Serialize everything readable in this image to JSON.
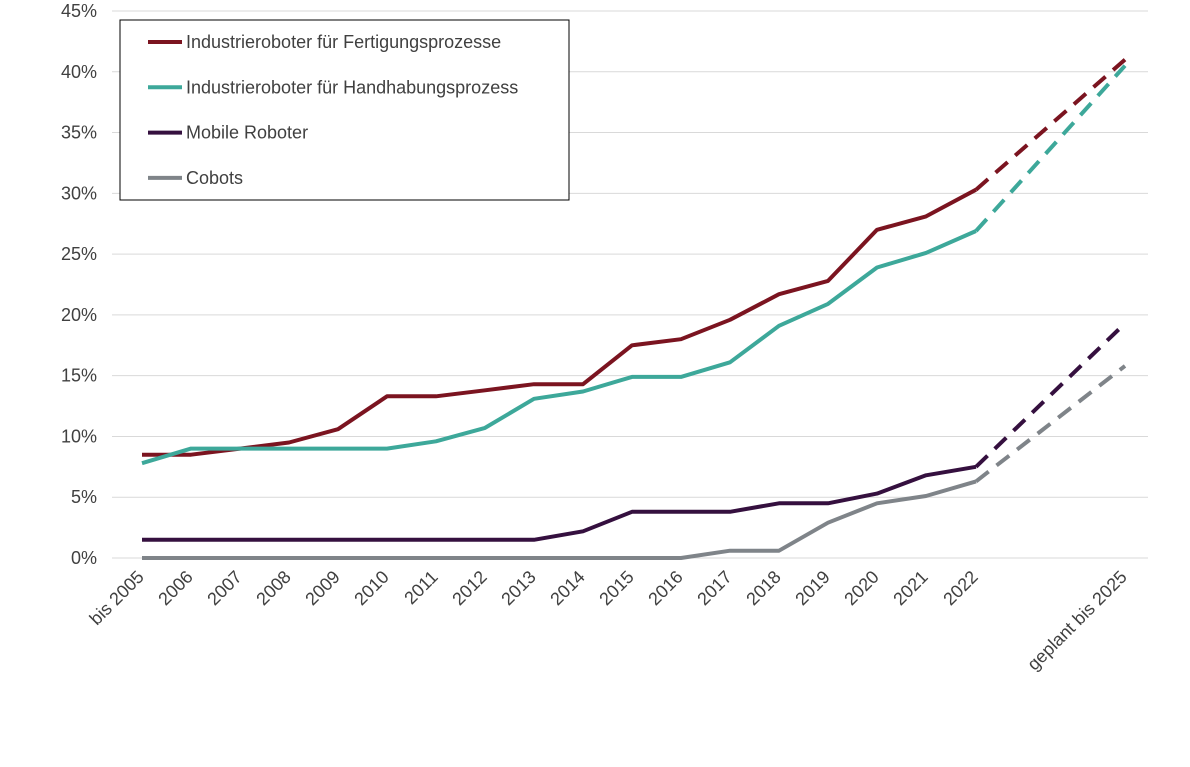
{
  "chart_data": {
    "type": "line",
    "title": "",
    "xlabel": "",
    "ylabel": "",
    "categories": [
      "bis 2005",
      "2006",
      "2007",
      "2008",
      "2009",
      "2010",
      "2011",
      "2012",
      "2013",
      "2014",
      "2015",
      "2016",
      "2017",
      "2018",
      "2019",
      "2020",
      "2021",
      "2022",
      "geplant bis 2025"
    ],
    "ylim": [
      0,
      45
    ],
    "yticks": [
      0,
      5,
      10,
      15,
      20,
      25,
      30,
      35,
      40,
      45
    ],
    "ytick_labels": [
      "0%",
      "5%",
      "10%",
      "15%",
      "20%",
      "25%",
      "30%",
      "35%",
      "40%",
      "45%"
    ],
    "grid": true,
    "legend_position": "top-left",
    "projection_note": "dashed segment from 2022 to geplant bis 2025",
    "series": [
      {
        "name": "Industrieroboter für Fertigungsprozesse",
        "color": "#7B1420",
        "values": [
          8.5,
          8.5,
          9.0,
          9.5,
          10.6,
          13.3,
          13.3,
          13.8,
          14.3,
          14.3,
          17.5,
          18.0,
          19.6,
          21.7,
          22.8,
          27.0,
          28.1,
          30.3,
          41.0
        ]
      },
      {
        "name": "Industrieroboter für Handhabungsprozess",
        "color": "#3DA89A",
        "values": [
          7.8,
          9.0,
          9.0,
          9.0,
          9.0,
          9.0,
          9.6,
          10.7,
          13.1,
          13.7,
          14.9,
          14.9,
          16.1,
          19.1,
          20.9,
          23.9,
          25.1,
          26.9,
          40.5
        ]
      },
      {
        "name": "Mobile Roboter",
        "color": "#35103F",
        "values": [
          1.5,
          1.5,
          1.5,
          1.5,
          1.5,
          1.5,
          1.5,
          1.5,
          1.5,
          2.2,
          3.8,
          3.8,
          3.8,
          4.5,
          4.5,
          5.3,
          6.8,
          7.5,
          19.3
        ]
      },
      {
        "name": "Cobots",
        "color": "#7F8489",
        "values": [
          0,
          0,
          0,
          0,
          0,
          0,
          0,
          0,
          0,
          0,
          0,
          0,
          0.6,
          0.6,
          2.9,
          4.5,
          5.1,
          6.3,
          15.8
        ]
      }
    ]
  }
}
